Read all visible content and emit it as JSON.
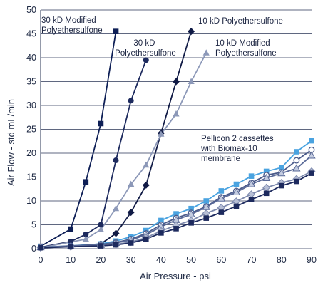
{
  "chart_data": {
    "type": "line",
    "xlabel": "Air Pressure - psi",
    "ylabel": "Air Flow - std mL/min",
    "xlim": [
      0,
      90
    ],
    "ylim": [
      0,
      50
    ],
    "xticks": [
      0,
      10,
      20,
      30,
      40,
      50,
      60,
      70,
      80,
      90
    ],
    "yticks": [
      0,
      5,
      10,
      15,
      20,
      25,
      30,
      35,
      40,
      45,
      50
    ],
    "grid": "horizontal",
    "legend": "none",
    "annotations": [
      {
        "id": "ann-30kd-mod",
        "lines": [
          "30 kD Modified",
          "Polyethersulfone"
        ]
      },
      {
        "id": "ann-30kd",
        "lines": [
          "30 kD",
          "Polyethersulfone"
        ]
      },
      {
        "id": "ann-10kd",
        "lines": [
          "10 kD Polyethersulfone"
        ]
      },
      {
        "id": "ann-10kd-mod",
        "lines": [
          "10 kD Modified",
          "Polyethersulfone"
        ]
      },
      {
        "id": "ann-pellicon",
        "lines": [
          "Pellicon 2 cassettes",
          "with Biomax-10",
          "membrane"
        ]
      }
    ],
    "series": [
      {
        "key": "s1",
        "color": "#0e1f56",
        "marker": "square",
        "x": [
          0,
          10,
          15,
          20,
          25
        ],
        "y": [
          0.5,
          4.1,
          14.0,
          26.2,
          45.5
        ]
      },
      {
        "key": "s2",
        "color": "#1d2a5e",
        "marker": "circle",
        "x": [
          0,
          10,
          15,
          20,
          25,
          30,
          35
        ],
        "y": [
          0.3,
          1.5,
          3.0,
          5.0,
          18.5,
          31.0,
          39.5
        ]
      },
      {
        "key": "s3",
        "color": "#101a45",
        "marker": "diamond",
        "x": [
          0,
          10,
          20,
          25,
          30,
          35,
          40,
          45,
          50
        ],
        "y": [
          0.2,
          0.5,
          1.0,
          3.2,
          7.6,
          13.3,
          24.2,
          35.0,
          45.5
        ]
      },
      {
        "key": "s4",
        "color": "#8c98b8",
        "marker": "triangle",
        "x": [
          0,
          15,
          20,
          25,
          30,
          35,
          40,
          45,
          50,
          55
        ],
        "y": [
          0.2,
          2.0,
          4.0,
          8.4,
          13.5,
          17.5,
          24.0,
          28.2,
          35.0,
          41.0
        ]
      },
      {
        "key": "s5",
        "color": "#4aa3e0",
        "marker": "square",
        "x": [
          0,
          10,
          20,
          25,
          30,
          35,
          40,
          45,
          50,
          55,
          60,
          65,
          70,
          75,
          80,
          85,
          90
        ],
        "y": [
          0.3,
          0.6,
          1.0,
          1.6,
          2.5,
          3.8,
          5.9,
          7.3,
          8.4,
          10.0,
          12.1,
          13.5,
          15.2,
          16.2,
          17.0,
          20.3,
          22.6
        ]
      },
      {
        "key": "s6",
        "color": "#4a5a8a",
        "marker": "circle-open",
        "x": [
          0,
          10,
          20,
          25,
          30,
          35,
          40,
          45,
          50,
          55,
          60,
          65,
          70,
          75,
          80,
          85,
          90
        ],
        "y": [
          0.3,
          0.6,
          0.9,
          1.3,
          2.0,
          3.2,
          5.0,
          6.4,
          7.5,
          8.8,
          10.8,
          12.1,
          13.8,
          15.4,
          16.0,
          18.5,
          20.7
        ]
      },
      {
        "key": "s7",
        "color": "#5a6a98",
        "marker": "triangle-light",
        "x": [
          0,
          10,
          20,
          25,
          30,
          35,
          40,
          45,
          50,
          55,
          60,
          65,
          70,
          75,
          80,
          85,
          90
        ],
        "y": [
          0.3,
          0.5,
          0.8,
          1.2,
          1.8,
          2.9,
          4.6,
          6.0,
          7.2,
          8.7,
          10.5,
          11.8,
          13.5,
          14.8,
          15.8,
          16.8,
          19.5
        ]
      },
      {
        "key": "s8",
        "color": "#7d89ad",
        "marker": "diamond-light",
        "x": [
          0,
          10,
          20,
          25,
          30,
          35,
          40,
          45,
          50,
          55,
          60,
          65,
          70,
          75,
          80,
          85,
          90
        ],
        "y": [
          0.2,
          0.4,
          0.6,
          0.9,
          1.4,
          2.3,
          3.7,
          4.9,
          5.9,
          7.4,
          8.6,
          9.9,
          11.4,
          12.8,
          13.8,
          14.6,
          16.2
        ]
      },
      {
        "key": "s9",
        "color": "#1d2a5e",
        "marker": "square",
        "x": [
          0,
          10,
          20,
          25,
          30,
          35,
          40,
          45,
          50,
          55,
          60,
          65,
          70,
          75,
          80,
          85,
          90
        ],
        "y": [
          0.2,
          0.4,
          0.6,
          0.8,
          1.2,
          2.0,
          3.3,
          4.2,
          5.4,
          6.4,
          7.6,
          8.9,
          10.3,
          11.6,
          13.2,
          14.1,
          15.8
        ]
      }
    ]
  }
}
